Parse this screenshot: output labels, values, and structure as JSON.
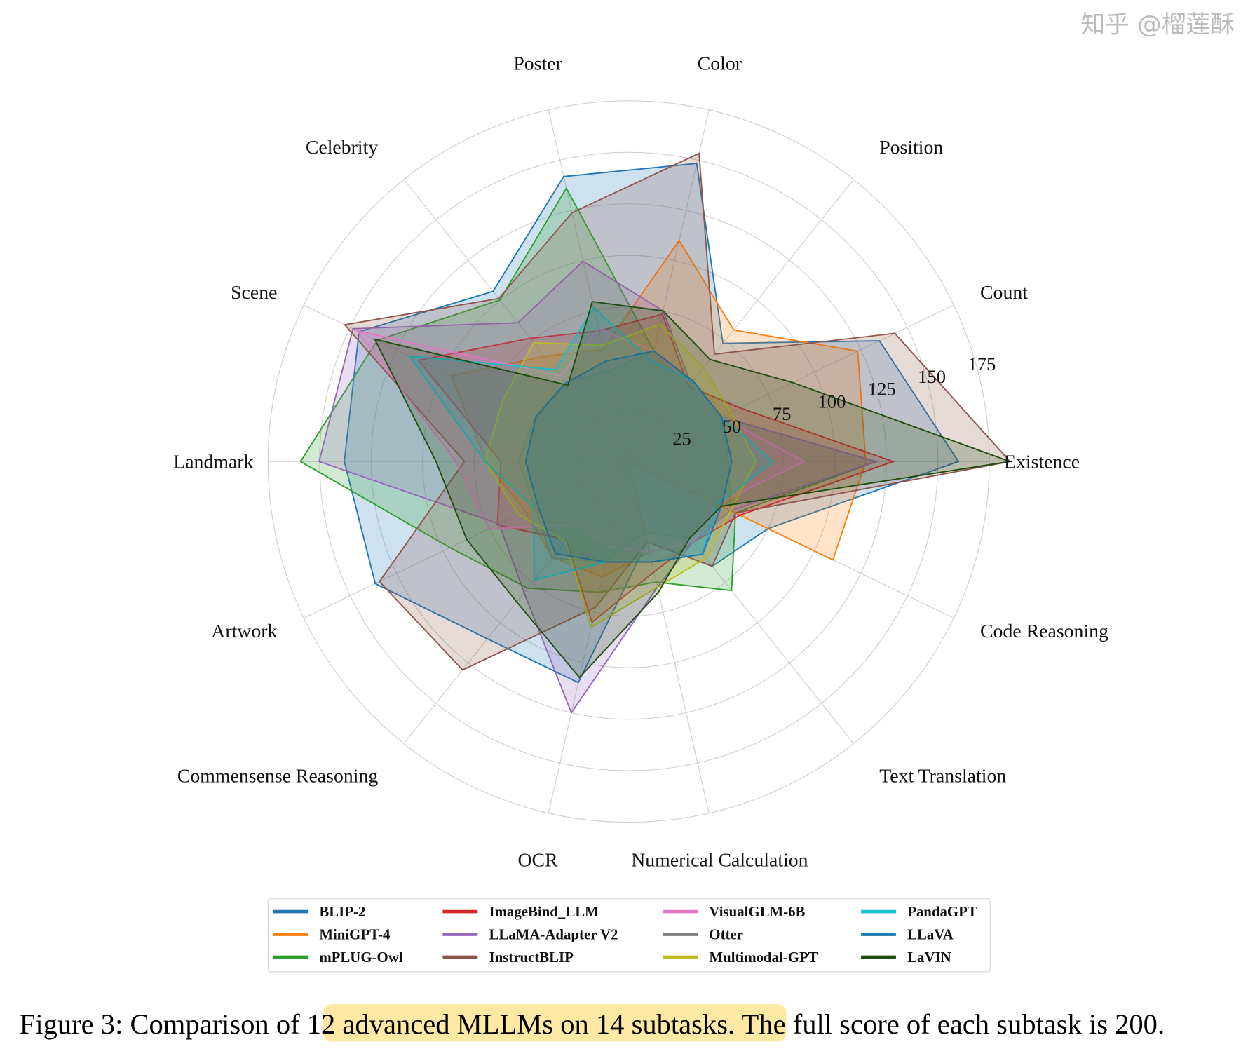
{
  "chart_data": {
    "type": "radar",
    "title": "",
    "axes": [
      "Existence",
      "Count",
      "Position",
      "Color",
      "Poster",
      "Celebrity",
      "Scene",
      "Landmark",
      "Artwork",
      "Commensense Reasoning",
      "OCR",
      "Numerical Calculation",
      "Text Translation",
      "Code Reasoning"
    ],
    "rlim": [
      0,
      175
    ],
    "r_ticks": [
      25,
      50,
      75,
      100,
      125,
      150,
      175
    ],
    "r_tick_labels": [
      "25",
      "50",
      "75",
      "100",
      "125",
      "150",
      "175"
    ],
    "grid": true,
    "legend_position": "bottom",
    "series": [
      {
        "name": "BLIP-2",
        "color": "#1f77b4",
        "values": [
          160,
          135,
          73.33,
          148.33,
          141.84,
          105.59,
          145.25,
          138,
          136.5,
          110,
          110,
          40,
          65,
          75
        ]
      },
      {
        "name": "MiniGPT-4",
        "color": "#ff7f0e",
        "values": [
          115,
          123.33,
          81.67,
          110,
          55.78,
          65.29,
          95.75,
          69,
          55.75,
          59.29,
          57.5,
          45,
          0,
          110
        ]
      },
      {
        "name": "mPLUG-Owl",
        "color": "#2ca02c",
        "values": [
          120,
          50,
          50,
          55,
          136.05,
          100.29,
          135.5,
          159.25,
          96.25,
          78.57,
          65,
          60,
          80,
          57.5
        ]
      },
      {
        "name": "ImageBind_LLM",
        "color": "#d62728",
        "values": [
          128.33,
          60,
          46.67,
          73.33,
          64.97,
          76.47,
          113.25,
          62,
          70.75,
          48.57,
          80,
          55,
          50,
          60
        ]
      },
      {
        "name": "LLaMA-Adapter V2",
        "color": "#9467bd",
        "values": [
          120,
          50,
          48.33,
          75,
          99.66,
          86.18,
          148.5,
          150.25,
          69.75,
          81.43,
          125,
          62.5,
          50,
          55
        ]
      },
      {
        "name": "InstructBLIP",
        "color": "#8c564b",
        "values": [
          185,
          143.33,
          66.67,
          153.33,
          123.81,
          101.18,
          153,
          79.75,
          134.25,
          129.29,
          72.5,
          40,
          65,
          57.5
        ]
      },
      {
        "name": "VisualGLM-6B",
        "color": "#e377c2",
        "values": [
          85,
          50,
          48.33,
          55,
          65.99,
          53.24,
          146.25,
          83.75,
          75.25,
          39.29,
          42.5,
          45,
          50,
          47.5
        ]
      },
      {
        "name": "Otter",
        "color": "#7f7f7f",
        "values": [
          48.33,
          50,
          50,
          55,
          44.9,
          49.12,
          50.5,
          53.5,
          50.5,
          60,
          50,
          35,
          47.5,
          55
        ]
      },
      {
        "name": "Multimodal-GPT",
        "color": "#bcbd22",
        "values": [
          61.67,
          55,
          58.33,
          68.33,
          57.82,
          73.82,
          68,
          69.75,
          59.5,
          49.29,
          82.5,
          62.5,
          60,
          55
        ]
      },
      {
        "name": "PandaGPT",
        "color": "#17becf",
        "values": [
          70,
          50,
          50,
          50,
          76.53,
          57.06,
          118,
          69.75,
          51.25,
          73.57,
          50,
          50,
          57.5,
          47.5
        ]
      },
      {
        "name": "LLaVA",
        "color": "#1f77b4",
        "values": [
          50,
          50,
          50,
          55,
          50,
          48.82,
          50,
          50,
          49,
          57.14,
          50,
          50,
          57.5,
          50
        ]
      },
      {
        "name": "LaVIN",
        "color": "#1e4d0e",
        "values": [
          185,
          88.33,
          63.33,
          75,
          79.59,
          47.35,
          136.75,
          93.5,
          87.25,
          87.14,
          107.5,
          65,
          47.5,
          50
        ]
      }
    ]
  },
  "caption": {
    "prefix": "Figure 3: Comparison of ",
    "highlight": "12 advanced MLLMs on 14 subtasks.",
    "suffix": " The full score of each subtask is 200.",
    "highlight_color": "#fde9a3"
  },
  "watermark": "知乎 @榴莲酥"
}
